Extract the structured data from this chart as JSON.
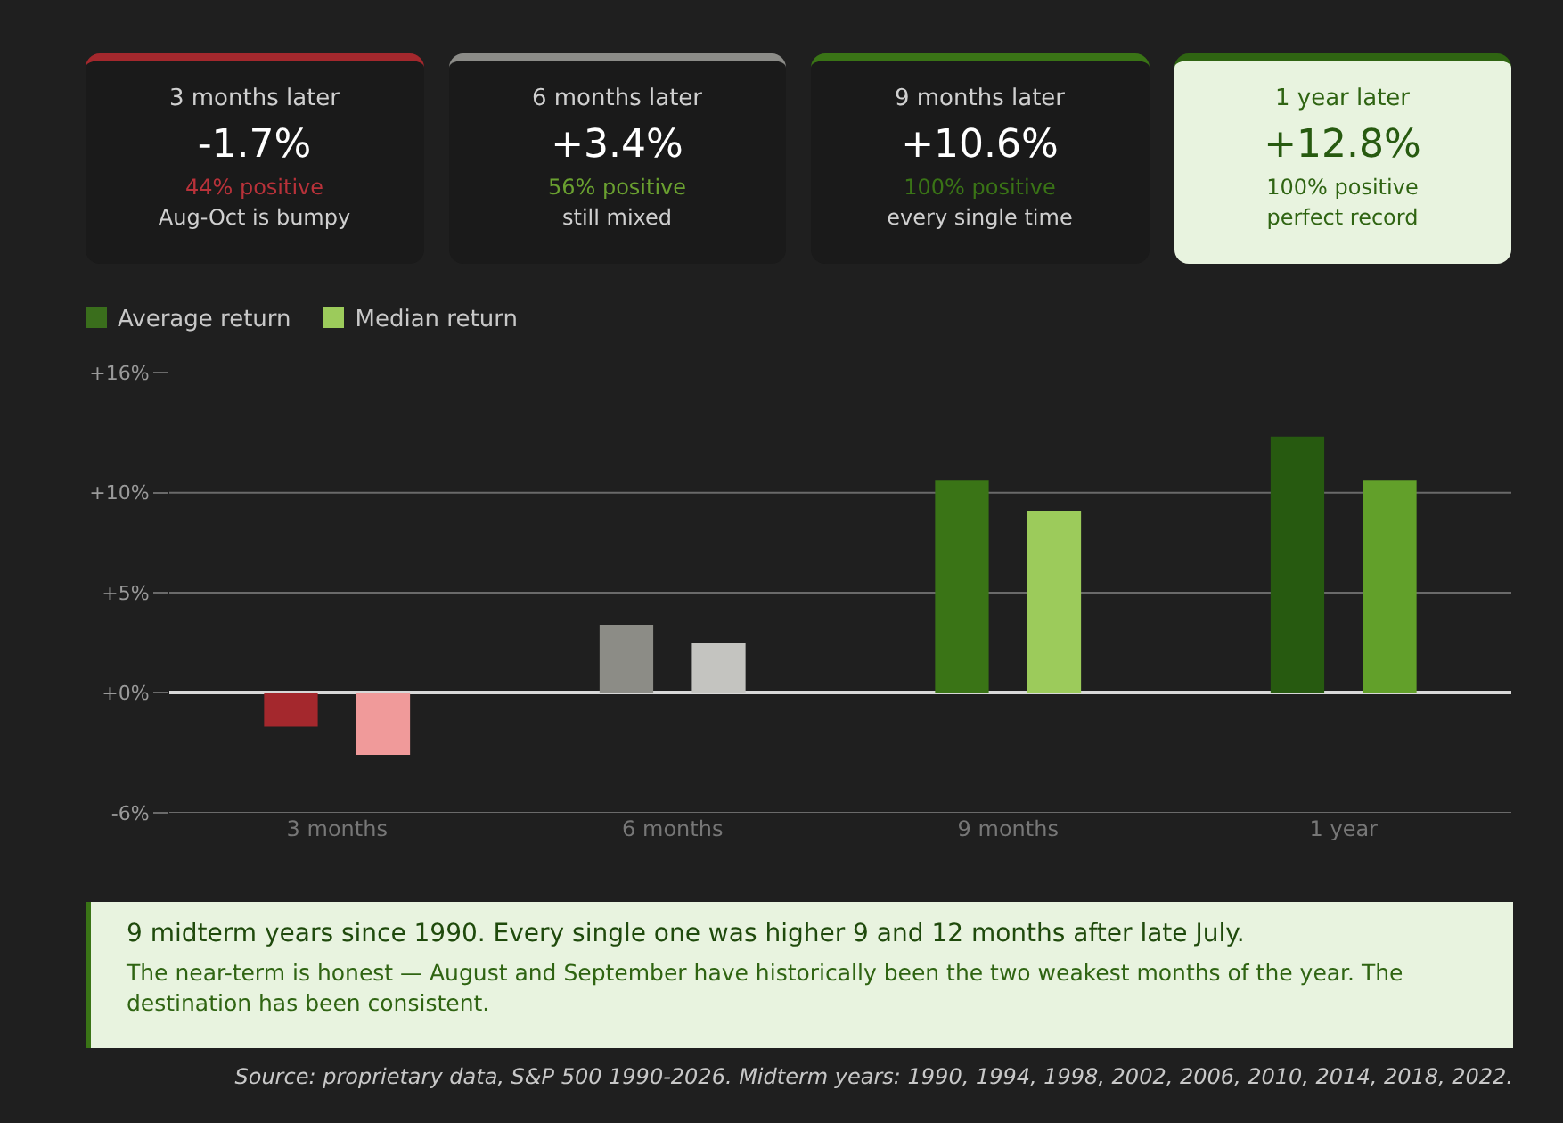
{
  "chart_data": [
    {
      "type": "other",
      "categories": [
        "3 months later",
        "6 months later",
        "9 months later",
        "1 year later"
      ],
      "value_labels": [
        "-1.7%",
        "+3.4%",
        "+10.6%",
        "+12.8%"
      ],
      "annotations": [
        "44% positive",
        "Aug-Oct is bumpy",
        "56% positive",
        "still mixed",
        "100% positive",
        "every single time",
        "100% positive",
        "perfect record"
      ]
    },
    {
      "type": "bar",
      "categories": [
        "3 months",
        "6 months",
        "9 months",
        "1 year"
      ],
      "series": [
        {
          "name": "Average return",
          "color": "#3a6e1c",
          "colors": [
            "#a4282d",
            "#8c8c86",
            "#3a7416",
            "#275a10"
          ],
          "values": [
            -1.7,
            3.4,
            10.6,
            12.8
          ]
        },
        {
          "name": "Median return",
          "color": "#9ccb5b",
          "colors": [
            "#f09a9a",
            "#c4c4c0",
            "#9ccb5b",
            "#62a02a"
          ],
          "values": [
            -3.1,
            2.5,
            9.1,
            10.6
          ]
        }
      ],
      "ylim": [
        -6,
        16
      ],
      "yticks": [
        {
          "value": -6,
          "label": "-6%"
        },
        {
          "value": 0,
          "label": "+0%"
        },
        {
          "value": 5,
          "label": "+5%"
        },
        {
          "value": 10,
          "label": "+10%"
        },
        {
          "value": 16,
          "label": "+16%"
        }
      ],
      "grid": "y",
      "legend": "top left",
      "annotations": [
        "9 midterm years since 1990. Every single one was higher 9 and 12 months after late July.",
        "The near-term is honest — August and September have historically been the two weakest months of the year. The destination has been consistent.",
        "Source: proprietary data, S&P 500 1990-2026. Midterm years: 1990, 1994, 1998, 2002, 2006, 2010, 2014, 2018, 2022."
      ]
    }
  ]
}
